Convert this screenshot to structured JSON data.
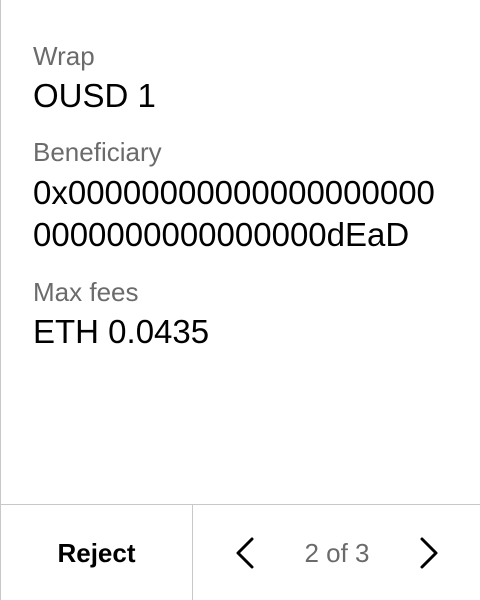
{
  "fields": [
    {
      "label": "Wrap",
      "value": "OUSD 1"
    },
    {
      "label": "Beneficiary",
      "value": "0x000000000000000000000000000000000000dEaD"
    },
    {
      "label": "Max fees",
      "value": "ETH 0.0435"
    }
  ],
  "footer": {
    "reject_label": "Reject",
    "pager_text": "2 of 3",
    "prev_icon": "chevron-left-icon",
    "next_icon": "chevron-right-icon"
  },
  "colors": {
    "label": "#6b6b6b",
    "value": "#000000",
    "divider": "#c8c8c8",
    "background": "#ffffff"
  }
}
